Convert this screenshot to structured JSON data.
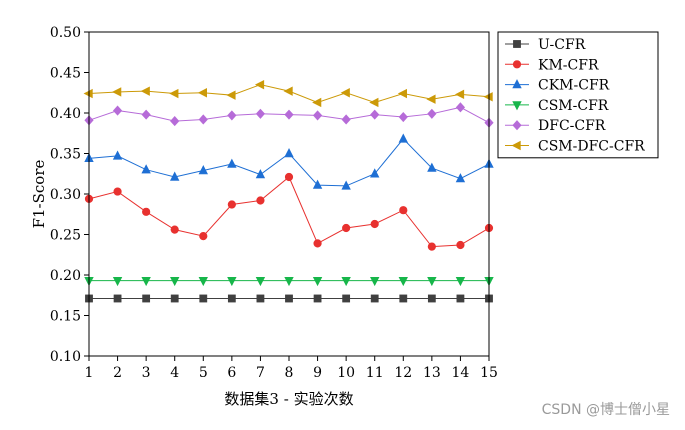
{
  "chart_data": {
    "type": "line",
    "x": [
      1,
      2,
      3,
      4,
      5,
      6,
      7,
      8,
      9,
      10,
      11,
      12,
      13,
      14,
      15
    ],
    "xticks": [
      "1",
      "2",
      "3",
      "4",
      "5",
      "6",
      "7",
      "8",
      "9",
      "10",
      "11",
      "12",
      "13",
      "14",
      "15"
    ],
    "xlim": [
      1,
      15
    ],
    "ylim": [
      0.1,
      0.5
    ],
    "yticks": [
      "0.10",
      "0.15",
      "0.20",
      "0.25",
      "0.30",
      "0.35",
      "0.40",
      "0.45",
      "0.50"
    ],
    "xlabel": "数据集3 - 实验次数",
    "ylabel": "F1-Score",
    "legend_position": "right-outside-top",
    "series": [
      {
        "name": "U-CFR",
        "color": "#404040",
        "marker": "square",
        "values": [
          0.171,
          0.171,
          0.171,
          0.171,
          0.171,
          0.171,
          0.171,
          0.171,
          0.171,
          0.171,
          0.171,
          0.171,
          0.171,
          0.171,
          0.171
        ]
      },
      {
        "name": "KM-CFR",
        "color": "#e8312f",
        "marker": "circle",
        "values": [
          0.294,
          0.303,
          0.278,
          0.256,
          0.248,
          0.287,
          0.292,
          0.321,
          0.239,
          0.258,
          0.263,
          0.28,
          0.235,
          0.237,
          0.258
        ]
      },
      {
        "name": "CKM-CFR",
        "color": "#1e6fd4",
        "marker": "triangle-up",
        "values": [
          0.344,
          0.347,
          0.33,
          0.321,
          0.329,
          0.337,
          0.324,
          0.35,
          0.311,
          0.31,
          0.325,
          0.368,
          0.332,
          0.319,
          0.337
        ]
      },
      {
        "name": "CSM-CFR",
        "color": "#17b64a",
        "marker": "triangle-down",
        "values": [
          0.193,
          0.193,
          0.193,
          0.193,
          0.193,
          0.193,
          0.193,
          0.193,
          0.193,
          0.193,
          0.193,
          0.193,
          0.193,
          0.193,
          0.193
        ]
      },
      {
        "name": "DFC-CFR",
        "color": "#b66bd8",
        "marker": "diamond",
        "values": [
          0.391,
          0.403,
          0.398,
          0.39,
          0.392,
          0.397,
          0.399,
          0.398,
          0.397,
          0.392,
          0.398,
          0.395,
          0.399,
          0.407,
          0.388
        ]
      },
      {
        "name": "CSM-DFC-CFR",
        "color": "#cc9a08",
        "marker": "triangle-left",
        "values": [
          0.424,
          0.426,
          0.427,
          0.424,
          0.425,
          0.422,
          0.435,
          0.427,
          0.413,
          0.425,
          0.413,
          0.424,
          0.417,
          0.423,
          0.42
        ]
      }
    ]
  },
  "watermark": "CSDN @博士僧小星"
}
